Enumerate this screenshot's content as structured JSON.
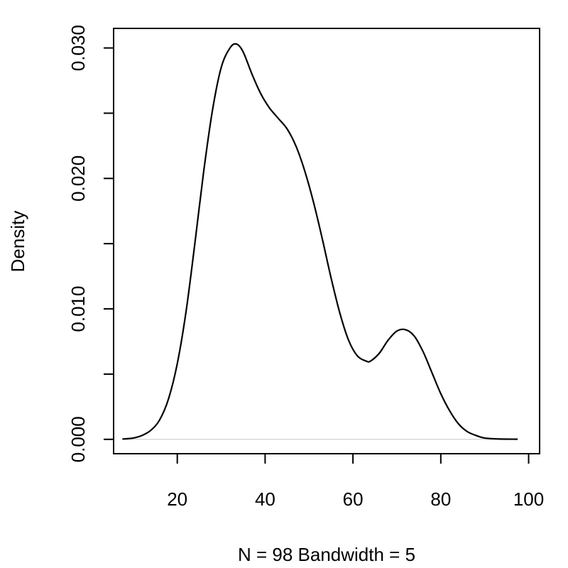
{
  "chart_data": {
    "type": "line",
    "title": "",
    "xlabel": "N = 98   Bandwidth = 5",
    "ylabel": "Density",
    "xlim": [
      5.5,
      102.5
    ],
    "ylim": [
      -0.0011,
      0.0315
    ],
    "x_ticks": [
      20,
      40,
      60,
      80,
      100
    ],
    "x_tick_labels": [
      "20",
      "40",
      "60",
      "80",
      "100"
    ],
    "y_ticks": [
      0.0,
      0.005,
      0.01,
      0.015,
      0.02,
      0.025,
      0.03
    ],
    "y_tick_labels": [
      "0.000",
      "",
      "0.010",
      "",
      "0.020",
      "",
      "0.030"
    ],
    "grid": false,
    "legend": "none",
    "reference_line_y": 0,
    "series": [
      {
        "x": [
          7.5,
          10,
          12,
          14,
          16,
          18,
          20,
          22,
          24,
          26,
          28,
          30,
          32,
          33.5,
          35,
          37,
          39,
          41,
          43,
          45,
          47,
          49,
          51,
          53,
          55,
          57,
          59,
          61,
          63,
          64,
          66,
          68,
          70,
          72,
          74,
          76,
          78,
          80,
          82,
          84,
          86,
          88,
          90,
          93,
          97.5
        ],
        "y": [
          2e-05,
          0.0001,
          0.0003,
          0.0007,
          0.0015,
          0.0031,
          0.0058,
          0.0098,
          0.015,
          0.0205,
          0.0252,
          0.0285,
          0.03,
          0.0303,
          0.0297,
          0.028,
          0.0265,
          0.0254,
          0.0246,
          0.0238,
          0.0225,
          0.0206,
          0.0182,
          0.0154,
          0.0124,
          0.0097,
          0.0076,
          0.0064,
          0.006,
          0.006,
          0.0066,
          0.0076,
          0.0083,
          0.0084,
          0.0079,
          0.0067,
          0.0051,
          0.0035,
          0.0022,
          0.0012,
          0.0006,
          0.0003,
          0.0001,
          3e-05,
          1e-05
        ]
      }
    ]
  }
}
